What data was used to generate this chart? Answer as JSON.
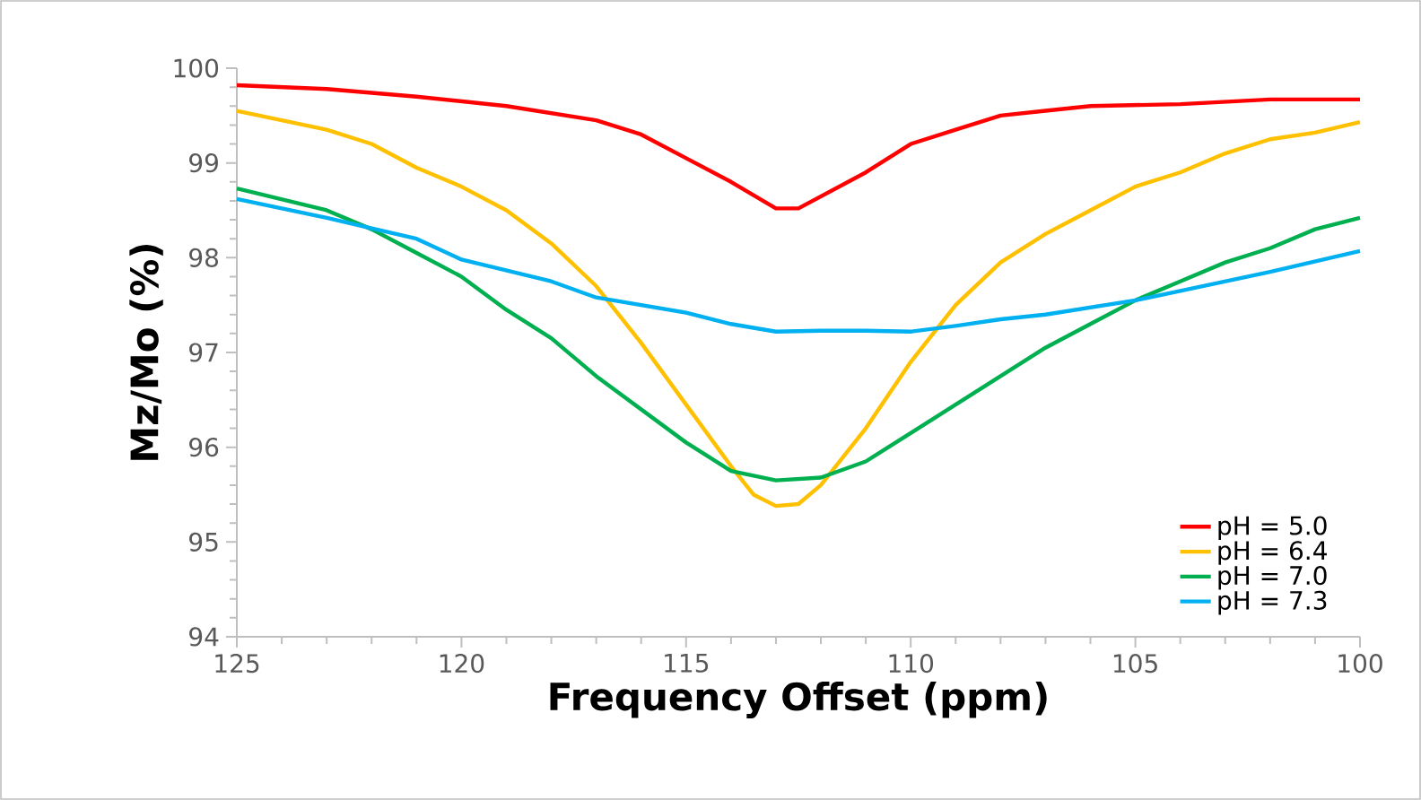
{
  "chart_data": {
    "type": "line",
    "xlabel": "Frequency Offset (ppm)",
    "ylabel": "Mz/Mo (%)",
    "xlim": [
      125,
      100
    ],
    "ylim": [
      94,
      100
    ],
    "xticks": [
      125,
      120,
      115,
      110,
      105,
      100
    ],
    "yticks": [
      94,
      95,
      96,
      97,
      98,
      99,
      100
    ],
    "grid": false,
    "legend": "bottom right",
    "marker": "none",
    "line_style": "solid",
    "series": [
      {
        "name": "pH = 5.0",
        "color": "#ff0000",
        "x": [
          125,
          123,
          121,
          119,
          117,
          116,
          115,
          114,
          113,
          112.5,
          111,
          110,
          109,
          108,
          107,
          106,
          104,
          102,
          100
        ],
        "values": [
          99.82,
          99.78,
          99.7,
          99.6,
          99.45,
          99.3,
          99.05,
          98.8,
          98.52,
          98.52,
          98.9,
          99.2,
          99.35,
          99.5,
          99.55,
          99.6,
          99.62,
          99.67,
          99.67
        ]
      },
      {
        "name": "pH = 6.4",
        "color": "#ffc000",
        "x": [
          125,
          123,
          122,
          121,
          120,
          119,
          118,
          117,
          116,
          115,
          114,
          113.5,
          113,
          112.5,
          112,
          111,
          110,
          109,
          108,
          107,
          106,
          105,
          104,
          103,
          102,
          101,
          100
        ],
        "values": [
          99.55,
          99.35,
          99.2,
          98.95,
          98.75,
          98.5,
          98.15,
          97.7,
          97.1,
          96.45,
          95.8,
          95.5,
          95.38,
          95.4,
          95.6,
          96.2,
          96.9,
          97.5,
          97.95,
          98.25,
          98.5,
          98.75,
          98.9,
          99.1,
          99.25,
          99.32,
          99.43
        ]
      },
      {
        "name": "pH = 7.0",
        "color": "#00b050",
        "x": [
          125,
          123,
          122,
          121,
          120,
          119,
          118,
          117,
          116,
          115,
          114,
          113,
          112,
          111,
          110,
          109,
          108,
          107,
          106,
          105,
          104,
          103,
          102,
          101,
          100
        ],
        "values": [
          98.73,
          98.5,
          98.3,
          98.05,
          97.8,
          97.45,
          97.15,
          96.75,
          96.4,
          96.05,
          95.75,
          95.65,
          95.68,
          95.85,
          96.15,
          96.45,
          96.75,
          97.05,
          97.3,
          97.55,
          97.75,
          97.95,
          98.1,
          98.3,
          98.42
        ]
      },
      {
        "name": "pH = 7.3",
        "color": "#00b0f0",
        "x": [
          125,
          123,
          121,
          120,
          118,
          117,
          115,
          114,
          113,
          112,
          111,
          110,
          109,
          108,
          107,
          105,
          104,
          102,
          100
        ],
        "values": [
          98.62,
          98.42,
          98.2,
          97.98,
          97.75,
          97.58,
          97.42,
          97.3,
          97.22,
          97.23,
          97.23,
          97.22,
          97.28,
          97.35,
          97.4,
          97.55,
          97.65,
          97.85,
          98.07
        ]
      }
    ]
  }
}
